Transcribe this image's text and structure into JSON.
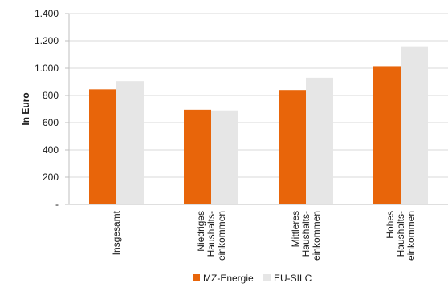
{
  "chart_data": {
    "type": "bar",
    "title": "",
    "ylabel": "In Euro",
    "xlabel": "",
    "ylim": [
      0,
      1400
    ],
    "yticks": [
      {
        "value": 0,
        "label": "-"
      },
      {
        "value": 200,
        "label": "200"
      },
      {
        "value": 400,
        "label": "400"
      },
      {
        "value": 600,
        "label": "600"
      },
      {
        "value": 800,
        "label": "800"
      },
      {
        "value": 1000,
        "label": "1.000"
      },
      {
        "value": 1200,
        "label": "1.200"
      },
      {
        "value": 1400,
        "label": "1.400"
      }
    ],
    "grid": true,
    "legend_position": "bottom",
    "categories": [
      [
        "Insgesamt"
      ],
      [
        "Niedriges",
        "Haushalts-",
        "einkommen"
      ],
      [
        "Mittleres",
        "Haushalts-",
        "einkommen"
      ],
      [
        "Hohes",
        "Haushalts-",
        "einkommen"
      ]
    ],
    "series": [
      {
        "name": "MZ-Energie",
        "color": "#e8650a",
        "values": [
          845,
          695,
          840,
          1015
        ]
      },
      {
        "name": "EU-SILC",
        "color": "#e6e6e6",
        "values": [
          905,
          690,
          930,
          1155
        ]
      }
    ]
  }
}
